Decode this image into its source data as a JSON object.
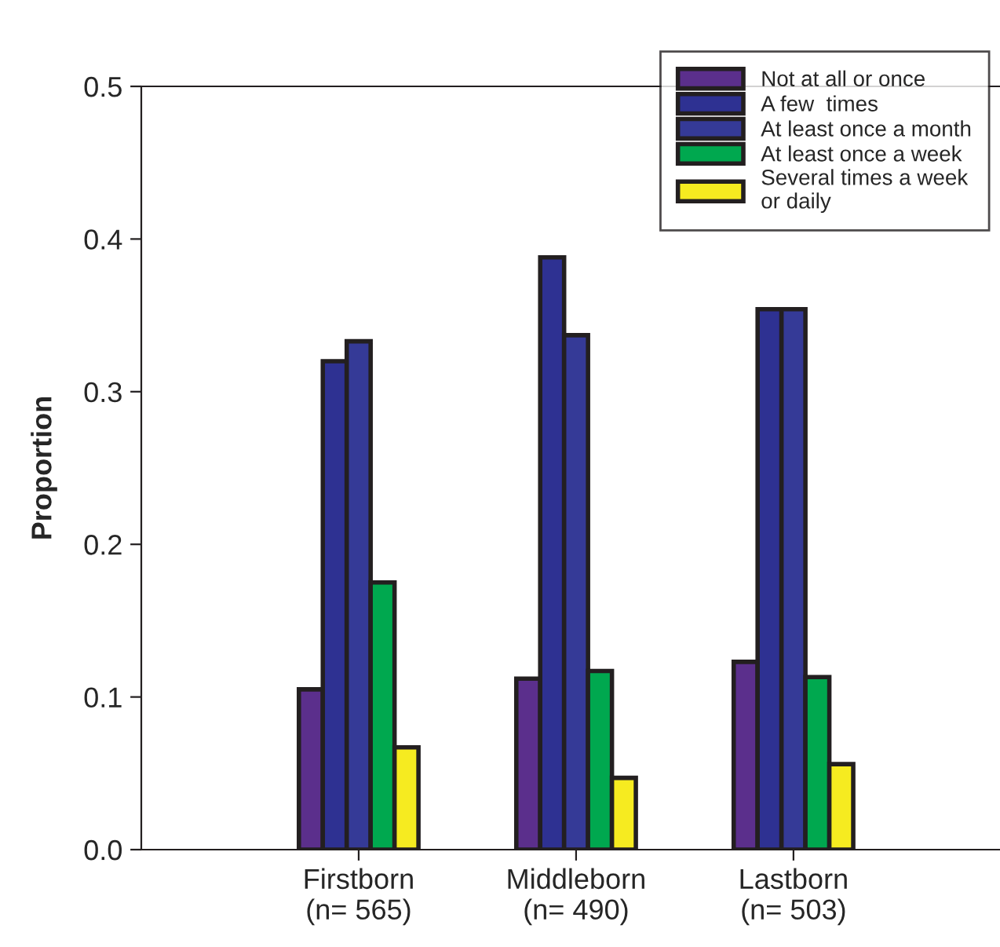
{
  "chart_data": {
    "type": "bar",
    "ylabel": "Proportion",
    "categories": [
      "Firstborn\n(n= 565)",
      "Middleborn\n(n= 490)",
      "Lastborn\n(n= 503)"
    ],
    "series": [
      {
        "name": "Not at all or once",
        "color": "#5b2f8c",
        "values": [
          0.105,
          0.112,
          0.123
        ]
      },
      {
        "name": "A few  times",
        "color": "#2e3192",
        "values": [
          0.32,
          0.388,
          0.354
        ]
      },
      {
        "name": "At least once a month",
        "color": "#353a97",
        "values": [
          0.333,
          0.337,
          0.354
        ]
      },
      {
        "name": "At least once a week",
        "color": "#00a84f",
        "values": [
          0.175,
          0.117,
          0.113
        ]
      },
      {
        "name": "Several times a week\nor daily",
        "color": "#f6eb20",
        "values": [
          0.067,
          0.047,
          0.056
        ]
      }
    ],
    "ylim": [
      0,
      0.5
    ],
    "yticks": [
      {
        "value": 0,
        "label": "0.0"
      },
      {
        "value": 0.1,
        "label": "0.1"
      },
      {
        "value": 0.2,
        "label": "0.2"
      },
      {
        "value": 0.3,
        "label": "0.3"
      },
      {
        "value": 0.4,
        "label": "0.4"
      },
      {
        "value": 0.5,
        "label": "0.5"
      }
    ],
    "grid": false,
    "legend": "top right"
  }
}
